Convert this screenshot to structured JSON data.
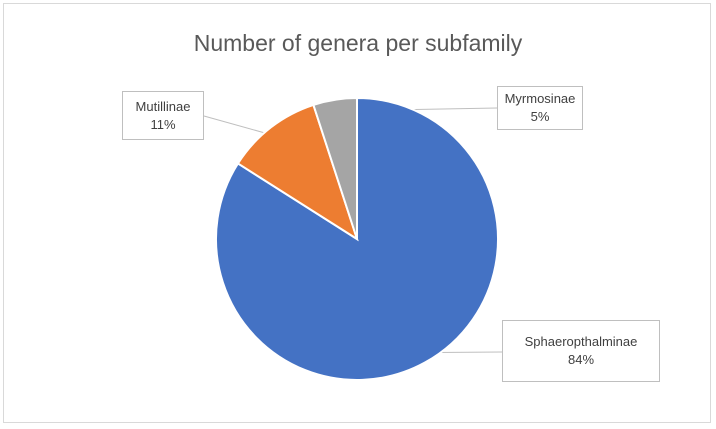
{
  "chart_data": {
    "type": "pie",
    "title": "Number of genera per subfamily",
    "slices": [
      {
        "name": "Sphaeropthalminae",
        "pct_label": "84%",
        "value": 84,
        "color": "#4472c4"
      },
      {
        "name": "Mutillinae",
        "pct_label": "11%",
        "value": 11,
        "color": "#ed7d31"
      },
      {
        "name": "Myrmosinae",
        "pct_label": "5%",
        "value": 5,
        "color": "#a5a5a5"
      }
    ],
    "start_angle_deg": 0,
    "direction": "clockwise"
  }
}
